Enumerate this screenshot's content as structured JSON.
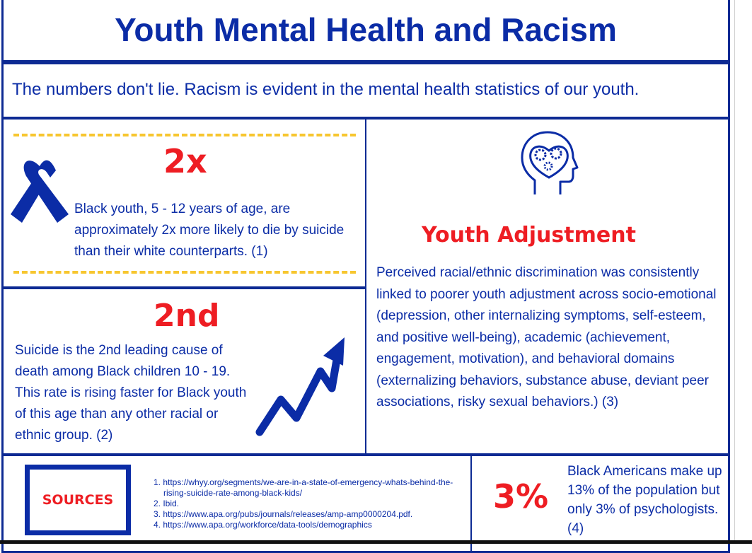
{
  "header": {
    "title": "Youth Mental Health and Racism",
    "subtitle": "The numbers don't lie. Racism is evident in the mental health statistics of our youth."
  },
  "stat_suicide_rate": {
    "number": "2x",
    "text": "Black youth, 5 - 12 years of age, are approximately 2x more likely to die by suicide than their white counterparts. (1)",
    "icon": "awareness-ribbon-icon"
  },
  "stat_leading_cause": {
    "number": "2nd",
    "text": "Suicide is the 2nd leading cause of death among Black children 10 - 19. This rate is rising faster for Black youth of this age than any other racial or ethnic group. (2)",
    "icon": "rising-arrow-icon"
  },
  "youth_adjustment": {
    "heading": "Youth Adjustment",
    "text": "Perceived racial/ethnic discrimination was consistently linked to poorer youth adjustment across socio-emotional (depression, other internalizing symptoms, self-esteem, and positive well-being), academic (achievement, engagement, motivation), and behavioral domains (externalizing behaviors, substance abuse, deviant peer associations, risky sexual behaviors.) (3)",
    "icon": "head-gears-icon"
  },
  "sources": {
    "label": "SOURCES",
    "items": [
      "1. https://whyy.org/segments/we-are-in-a-state-of-emergency-whats-behind-the-rising-suicide-rate-among-black-kids/",
      "2. Ibid.",
      "3. https://www.apa.org/pubs/journals/releases/amp-amp0000204.pdf.",
      "4. https://www.apa.org/workforce/data-tools/demographics"
    ]
  },
  "stat_psychologists": {
    "number": "3%",
    "text": "Black Americans make up 13% of the population but only 3% of psychologists. (4)"
  },
  "colors": {
    "primary_blue": "#0b2ca6",
    "accent_red": "#ee1d23",
    "accent_yellow": "#f7c62f"
  }
}
